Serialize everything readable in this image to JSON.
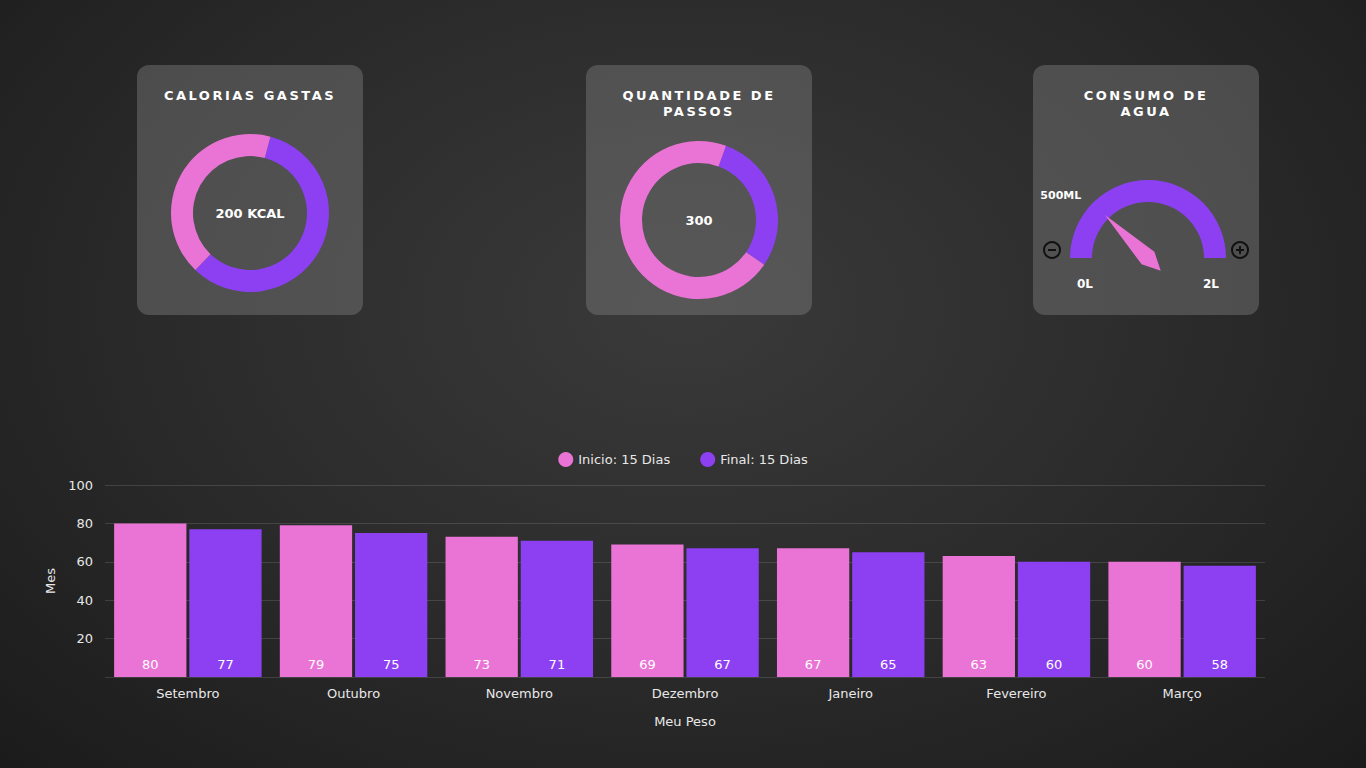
{
  "chart_data": [
    {
      "type": "pie",
      "title": "CALORIAS GASTAS",
      "annotations": [
        "200 KCAL"
      ],
      "values": [
        58,
        42
      ],
      "colors": [
        "#8c40f2",
        "#e974d6"
      ]
    },
    {
      "type": "pie",
      "title": "QUANTIDADE DE PASSOS",
      "annotations": [
        "300"
      ],
      "values": [
        29,
        71
      ],
      "colors": [
        "#8c40f2",
        "#e974d6"
      ]
    },
    {
      "type": "gauge",
      "title": "CONSUMO DE AGUA",
      "values": [
        0.5
      ],
      "value_labels": [
        "500ML"
      ],
      "ylim": [
        0,
        2
      ],
      "yticks": [
        {
          "value": 0,
          "label": "0L"
        },
        {
          "value": 2,
          "label": "2L"
        }
      ],
      "color": "#8c40f2"
    },
    {
      "type": "bar",
      "xlabel": "Meu Peso",
      "ylabel": "Mes",
      "categories": [
        "Setembro",
        "Outubro",
        "Novembro",
        "Dezembro",
        "Janeiro",
        "Fevereiro",
        "Março"
      ],
      "series": [
        {
          "name": "Inicio: 15 Dias",
          "color": "#e974d6",
          "values": [
            80,
            79,
            73,
            69,
            67,
            63,
            60
          ]
        },
        {
          "name": "Final: 15 Dias",
          "color": "#8c40f2",
          "values": [
            77,
            75,
            71,
            67,
            65,
            60,
            58
          ]
        }
      ],
      "ylim": [
        0,
        100
      ],
      "yticks": [
        20,
        40,
        60,
        80,
        100
      ],
      "grid": true,
      "legend": "top",
      "data_labels": true
    }
  ]
}
